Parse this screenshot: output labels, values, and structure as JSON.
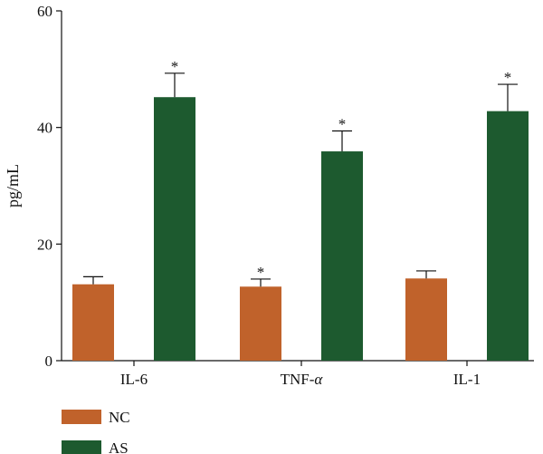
{
  "chart_data": {
    "type": "bar",
    "categories": [
      "IL-6",
      "TNF-α",
      "IL-1"
    ],
    "category_display": [
      {
        "main": "IL-6",
        "suffix": ""
      },
      {
        "main": "TNF-",
        "suffix": "α"
      },
      {
        "main": "IL-1",
        "suffix": ""
      }
    ],
    "series": [
      {
        "name": "NC",
        "values": [
          13.1,
          12.7,
          14.1
        ],
        "errors": [
          1.3,
          1.3,
          1.3
        ],
        "significant": [
          false,
          true,
          false
        ],
        "color": "#c0622b"
      },
      {
        "name": "AS",
        "values": [
          45.2,
          35.9,
          42.8
        ],
        "errors": [
          4.1,
          3.5,
          4.6
        ],
        "significant": [
          true,
          true,
          true
        ],
        "color": "#1d5a2f"
      }
    ],
    "significance_marker": "*",
    "title": "",
    "xlabel": "",
    "ylabel": "pg/mL",
    "ylim": [
      0,
      60
    ],
    "yticks": [
      0,
      20,
      40,
      60
    ],
    "grid": false,
    "legend_position": "bottom-left"
  }
}
